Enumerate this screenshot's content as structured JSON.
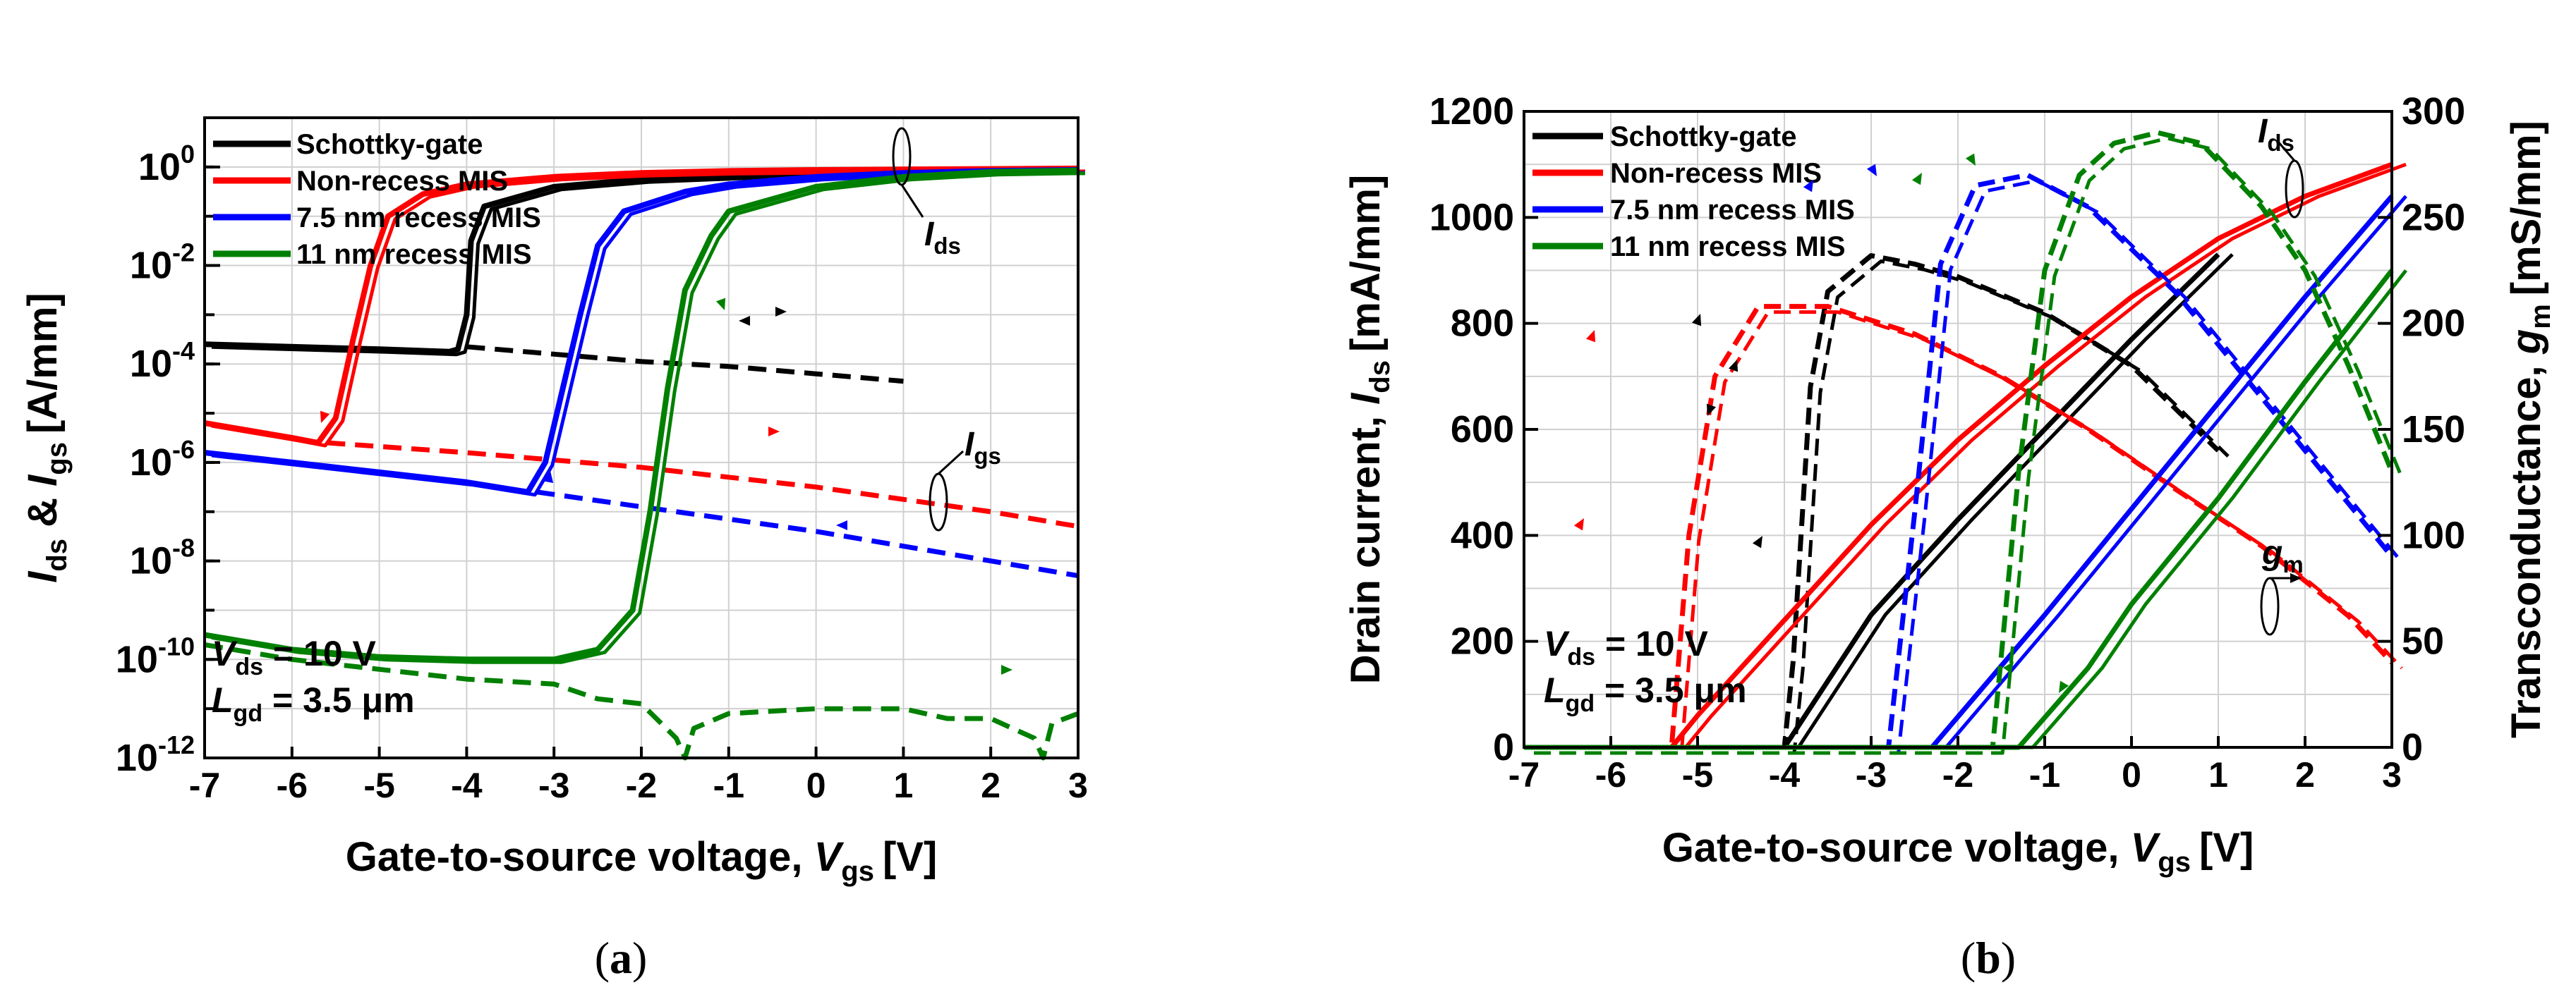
{
  "chart_data": [
    {
      "type": "line",
      "caption": "(a)",
      "panel_label": "a",
      "ylabel": {
        "part1": "I",
        "sub1": "ds",
        "part2": " & ",
        "part3": "I",
        "sub2": "gs",
        "unit": "[A/mm]"
      },
      "xlabel": {
        "text": "Gate-to-source voltage, ",
        "var": "V",
        "sub": "gs",
        "unit": "[V]"
      },
      "xlim": [
        -7,
        3
      ],
      "xticks": [
        "-7",
        "-6",
        "-5",
        "-4",
        "-3",
        "-2",
        "-1",
        "0",
        "1",
        "2",
        "3"
      ],
      "ylog_range": [
        -12,
        1
      ],
      "yticks": [
        {
          "base": "10",
          "exp": "0",
          "log": 0
        },
        {
          "base": "10",
          "exp": "-2",
          "log": -2
        },
        {
          "base": "10",
          "exp": "-4",
          "log": -4
        },
        {
          "base": "10",
          "exp": "-6",
          "log": -6
        },
        {
          "base": "10",
          "exp": "-8",
          "log": -8
        },
        {
          "base": "10",
          "exp": "-10",
          "log": -10
        },
        {
          "base": "10",
          "exp": "-12",
          "log": -12
        }
      ],
      "legend_position": "top-left",
      "annotation_ids": {
        "main": "I",
        "sub": "ds"
      },
      "annotation_igs": {
        "main": "I",
        "sub": "gs"
      },
      "conditions": [
        {
          "var": "V",
          "sub": "ds",
          "value": " = 10 V"
        },
        {
          "var": "L",
          "sub": "gd",
          "value": " = 3.5 μm"
        }
      ],
      "series": [
        {
          "name": "Schottky-gate",
          "color": "#000000",
          "ids": {
            "x": [
              -7,
              -5,
              -4.2,
              -4.1,
              -4.0,
              -3.95,
              -3.8,
              -3,
              -2,
              -1,
              0,
              1,
              2,
              3
            ],
            "log": [
              -3.6,
              -3.7,
              -3.75,
              -3.7,
              -3.0,
              -1.5,
              -0.8,
              -0.4,
              -0.25,
              -0.18,
              -0.13,
              -0.1,
              -0.08,
              -0.07
            ]
          },
          "igs": {
            "x": [
              -4,
              -3,
              -2,
              -1,
              0,
              1
            ],
            "log": [
              -3.65,
              -3.8,
              -3.95,
              -4.05,
              -4.2,
              -4.35
            ]
          }
        },
        {
          "name": "Non-recess MIS",
          "color": "#ff0000",
          "ids": {
            "x": [
              -7,
              -6,
              -5.7,
              -5.5,
              -5.3,
              -5.1,
              -4.9,
              -4.5,
              -4,
              -3,
              -2,
              -1,
              0,
              1,
              2,
              3
            ],
            "log": [
              -5.2,
              -5.5,
              -5.6,
              -5.1,
              -3.5,
              -2.0,
              -1.0,
              -0.55,
              -0.35,
              -0.2,
              -0.12,
              -0.08,
              -0.06,
              -0.05,
              -0.04,
              -0.03
            ]
          },
          "igs": {
            "x": [
              -5.6,
              -4,
              -2,
              0,
              2,
              3
            ],
            "log": [
              -5.6,
              -5.8,
              -6.1,
              -6.5,
              -7.0,
              -7.3
            ]
          }
        },
        {
          "name": "7.5 nm recess MIS",
          "color": "#0000ff",
          "ids": {
            "x": [
              -7,
              -6,
              -5,
              -4,
              -3.3,
              -3.1,
              -2.9,
              -2.7,
              -2.5,
              -2.2,
              -1.5,
              -1,
              0,
              1,
              2,
              3
            ],
            "log": [
              -5.8,
              -6.0,
              -6.2,
              -6.4,
              -6.6,
              -6.0,
              -4.5,
              -3.0,
              -1.6,
              -0.9,
              -0.5,
              -0.35,
              -0.2,
              -0.12,
              -0.08,
              -0.06
            ]
          },
          "igs": {
            "x": [
              -3.2,
              -2,
              0,
              2,
              3
            ],
            "log": [
              -6.6,
              -6.9,
              -7.4,
              -8.0,
              -8.3
            ]
          }
        },
        {
          "name": "11 nm recess MIS",
          "color": "#008000",
          "ids": {
            "x": [
              -7,
              -6,
              -5,
              -4,
              -3,
              -2.5,
              -2.1,
              -1.9,
              -1.7,
              -1.5,
              -1.2,
              -1,
              0,
              1,
              2,
              3
            ],
            "log": [
              -9.5,
              -9.8,
              -9.95,
              -10.0,
              -10.0,
              -9.8,
              -9.0,
              -7.0,
              -4.5,
              -2.5,
              -1.4,
              -0.9,
              -0.4,
              -0.2,
              -0.1,
              -0.07
            ]
          },
          "igs": {
            "x": [
              -7,
              -6,
              -5,
              -4,
              -3,
              -2.5,
              -2,
              -1.6,
              -1.5,
              -1.4,
              -1,
              0,
              1,
              1.5,
              2,
              2.5,
              2.6,
              2.7,
              3
            ],
            "log": [
              -9.7,
              -10.0,
              -10.2,
              -10.4,
              -10.5,
              -10.8,
              -10.9,
              -11.6,
              -12.0,
              -11.4,
              -11.1,
              -11.0,
              -11.0,
              -11.2,
              -11.2,
              -11.6,
              -12.0,
              -11.3,
              -11.1
            ]
          }
        }
      ]
    },
    {
      "type": "line",
      "caption": "(b)",
      "panel_label": "b",
      "ylabel_left": {
        "text": "Drain current, ",
        "var": "I",
        "sub": "ds",
        "unit": "[mA/mm]"
      },
      "ylabel_right": {
        "text": "Transconductance, ",
        "var": "g",
        "sub": "m",
        "unit": "[mS/mm]"
      },
      "xlabel": {
        "text": "Gate-to-source voltage, ",
        "var": "V",
        "sub": "gs",
        "unit": "[V]"
      },
      "xlim": [
        -7,
        3
      ],
      "xticks": [
        "-7",
        "-6",
        "-5",
        "-4",
        "-3",
        "-2",
        "-1",
        "0",
        "1",
        "2",
        "3"
      ],
      "ylim_left": [
        0,
        1200
      ],
      "yticks_left": [
        "0",
        "200",
        "400",
        "600",
        "800",
        "1000",
        "1200"
      ],
      "ylim_right": [
        0,
        300
      ],
      "yticks_right": [
        "0",
        "50",
        "100",
        "150",
        "200",
        "250",
        "300"
      ],
      "legend_position": "top-left",
      "annotation_ids": {
        "main": "I",
        "sub": "ds"
      },
      "annotation_gm": {
        "main": "g",
        "sub": "m"
      },
      "conditions": [
        {
          "var": "V",
          "sub": "ds",
          "value": " = 10 V"
        },
        {
          "var": "L",
          "sub": "gd",
          "value": " = 3.5 μm"
        }
      ],
      "series": [
        {
          "name": "Schottky-gate",
          "color": "#000000",
          "ids": {
            "x": [
              -7,
              -4,
              -3,
              -2,
              -1,
              0,
              1
            ],
            "y": [
              0,
              0,
              250,
              430,
              600,
              770,
              930
            ]
          },
          "gm": {
            "x": [
              -7,
              -4,
              -3.9,
              -3.7,
              -3.5,
              -3.0,
              -2.5,
              -2.0,
              -1.0,
              0.0,
              0.5,
              1.0
            ],
            "y": [
              0,
              0,
              40,
              170,
              215,
              232,
              228,
              222,
              205,
              180,
              160,
              140
            ]
          }
        },
        {
          "name": "Non-recess MIS",
          "color": "#ff0000",
          "ids": {
            "x": [
              -7,
              -5.3,
              -5,
              -4,
              -3,
              -2,
              -1,
              0,
              1,
              2,
              3
            ],
            "y": [
              0,
              0,
              60,
              240,
              420,
              580,
              720,
              850,
              960,
              1040,
              1100
            ]
          },
          "gm": {
            "x": [
              -7,
              -5.3,
              -5.1,
              -4.8,
              -4.3,
              -3.5,
              -2.5,
              -1.5,
              -0.5,
              0.5,
              1.5,
              2.5,
              3.0
            ],
            "y": [
              0,
              0,
              100,
              175,
              208,
              208,
              195,
              175,
              150,
              122,
              95,
              62,
              40
            ]
          }
        },
        {
          "name": "7.5 nm recess MIS",
          "color": "#0000ff",
          "ids": {
            "x": [
              -7,
              -2.3,
              -1,
              0,
              1,
              2,
              3
            ],
            "y": [
              0,
              0,
              250,
              450,
              650,
              850,
              1040
            ]
          },
          "gm": {
            "x": [
              -7,
              -2.8,
              -2.5,
              -2.2,
              -1.8,
              -1.2,
              -0.5,
              0.5,
              1.0,
              1.5,
              2.0,
              2.5,
              3.0
            ],
            "y": [
              0,
              0,
              110,
              228,
              265,
              270,
              255,
              215,
              190,
              165,
              140,
              115,
              90
            ]
          }
        },
        {
          "name": "11 nm recess MIS",
          "color": "#008000",
          "ids": {
            "x": [
              -7,
              -1.3,
              -0.5,
              0,
              1,
              2,
              3
            ],
            "y": [
              0,
              0,
              150,
              270,
              470,
              690,
              900
            ]
          },
          "gm": {
            "x": [
              -7,
              -1.6,
              -1.3,
              -1.0,
              -0.6,
              -0.2,
              0.3,
              0.8,
              1.5,
              2.0,
              2.5,
              3.0
            ],
            "y": [
              0,
              0,
              130,
              225,
              270,
              285,
              290,
              285,
              255,
              225,
              180,
              130
            ]
          }
        }
      ]
    }
  ]
}
